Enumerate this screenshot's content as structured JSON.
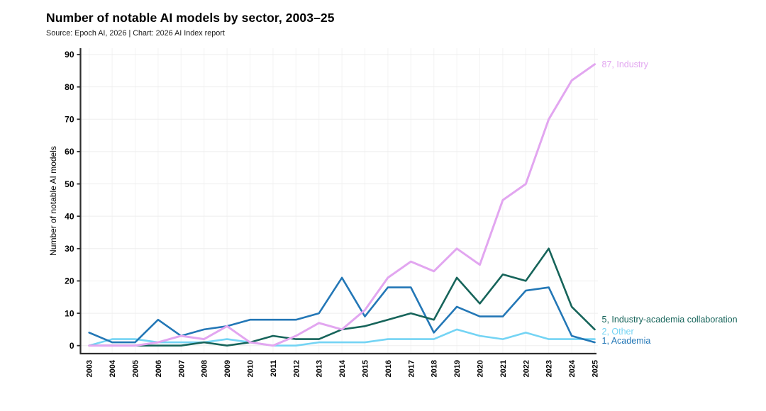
{
  "header": {
    "title": "Number of notable AI models by sector, 2003–25",
    "subtitle": "Source: Epoch AI, 2026 | Chart: 2026 AI Index report"
  },
  "chart_data": {
    "type": "line",
    "title": "Number of notable AI models by sector, 2003–25",
    "subtitle": "Source: Epoch AI, 2026 | Chart: 2026 AI Index report",
    "xlabel": "",
    "ylabel": "Number of notable AI models",
    "x": [
      2003,
      2004,
      2005,
      2006,
      2007,
      2008,
      2009,
      2010,
      2011,
      2012,
      2013,
      2014,
      2015,
      2016,
      2017,
      2018,
      2019,
      2020,
      2021,
      2022,
      2023,
      2024,
      2025
    ],
    "ylim": [
      0,
      90
    ],
    "yticks": [
      0,
      10,
      20,
      30,
      40,
      50,
      60,
      70,
      80,
      90
    ],
    "grid": true,
    "legend_position": "end-of-line-labels",
    "axis_color": "#2e2e2e",
    "grid_color": "#ededed",
    "series": [
      {
        "name": "Other",
        "color": "#74d4f4",
        "end_label": "2, Other",
        "end_value": 2,
        "values": [
          0,
          2,
          2,
          1,
          1,
          1,
          2,
          1,
          0,
          0,
          1,
          1,
          1,
          2,
          2,
          2,
          5,
          3,
          2,
          4,
          2,
          2,
          2
        ]
      },
      {
        "name": "Academia",
        "color": "#2377b6",
        "end_label": "1, Academia",
        "end_value": 1,
        "values": [
          4,
          1,
          1,
          8,
          3,
          5,
          6,
          8,
          8,
          8,
          10,
          21,
          9,
          18,
          18,
          4,
          12,
          9,
          9,
          17,
          18,
          3,
          1
        ]
      },
      {
        "name": "Industry-academia collaboration",
        "color": "#16645a",
        "end_label": "5, Industry-academia collaboration",
        "end_value": 5,
        "values": [
          0,
          0,
          0,
          0,
          0,
          1,
          0,
          1,
          3,
          2,
          2,
          5,
          6,
          8,
          10,
          8,
          21,
          13,
          22,
          20,
          30,
          12,
          5
        ]
      },
      {
        "name": "Industry",
        "color": "#e2a6f0",
        "end_label": "87, Industry",
        "end_value": 87,
        "values": [
          0,
          0,
          0,
          1,
          3,
          2,
          6,
          1,
          0,
          3,
          7,
          5,
          11,
          21,
          26,
          23,
          30,
          25,
          45,
          50,
          70,
          82,
          87
        ]
      }
    ]
  }
}
